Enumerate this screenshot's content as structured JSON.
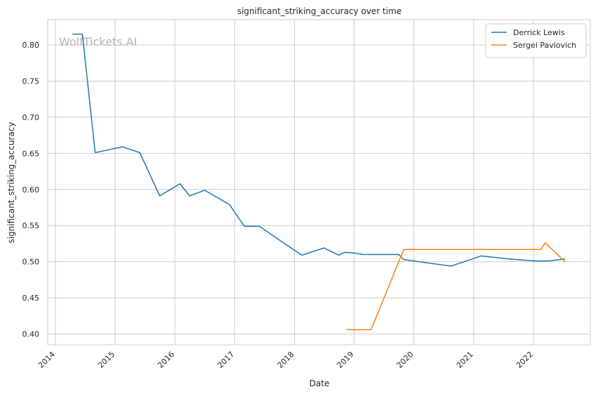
{
  "chart_data": {
    "type": "line",
    "title": "significant_striking_accuracy over time",
    "xlabel": "Date",
    "ylabel": "significant_striking_accuracy",
    "watermark": "WolfTickets.AI",
    "x_range": [
      "2013-11-15",
      "2022-12-15"
    ],
    "ylim": [
      0.385,
      0.835
    ],
    "x_ticks": [
      {
        "value": "2014-01-01",
        "label": "2014"
      },
      {
        "value": "2015-01-01",
        "label": "2015"
      },
      {
        "value": "2016-01-01",
        "label": "2016"
      },
      {
        "value": "2017-01-01",
        "label": "2017"
      },
      {
        "value": "2018-01-01",
        "label": "2018"
      },
      {
        "value": "2019-01-01",
        "label": "2019"
      },
      {
        "value": "2020-01-01",
        "label": "2020"
      },
      {
        "value": "2021-01-01",
        "label": "2021"
      },
      {
        "value": "2022-01-01",
        "label": "2022"
      }
    ],
    "y_ticks": [
      0.4,
      0.45,
      0.5,
      0.55,
      0.6,
      0.65,
      0.7,
      0.75,
      0.8
    ],
    "grid": true,
    "legend_position": "top-right",
    "series": [
      {
        "name": "Derrick Lewis",
        "color": "#1f77b4",
        "points": [
          {
            "x": "2014-04-15",
            "y": 0.815
          },
          {
            "x": "2014-06-15",
            "y": 0.815
          },
          {
            "x": "2014-09-01",
            "y": 0.651
          },
          {
            "x": "2015-02-15",
            "y": 0.659
          },
          {
            "x": "2015-06-01",
            "y": 0.651
          },
          {
            "x": "2015-10-01",
            "y": 0.591
          },
          {
            "x": "2016-02-01",
            "y": 0.608
          },
          {
            "x": "2016-04-01",
            "y": 0.591
          },
          {
            "x": "2016-07-01",
            "y": 0.599
          },
          {
            "x": "2016-12-01",
            "y": 0.579
          },
          {
            "x": "2017-03-01",
            "y": 0.549
          },
          {
            "x": "2017-06-01",
            "y": 0.549
          },
          {
            "x": "2018-02-15",
            "y": 0.509
          },
          {
            "x": "2018-07-01",
            "y": 0.519
          },
          {
            "x": "2018-10-01",
            "y": 0.509
          },
          {
            "x": "2018-11-01",
            "y": 0.513
          },
          {
            "x": "2019-01-01",
            "y": 0.512
          },
          {
            "x": "2019-03-01",
            "y": 0.51
          },
          {
            "x": "2019-10-01",
            "y": 0.51
          },
          {
            "x": "2019-11-01",
            "y": 0.503
          },
          {
            "x": "2020-08-15",
            "y": 0.494
          },
          {
            "x": "2021-02-15",
            "y": 0.508
          },
          {
            "x": "2021-08-01",
            "y": 0.504
          },
          {
            "x": "2022-01-15",
            "y": 0.501
          },
          {
            "x": "2022-04-01",
            "y": 0.501
          },
          {
            "x": "2022-07-15",
            "y": 0.504
          }
        ]
      },
      {
        "name": "Sergei Pavlovich",
        "color": "#ff7f0e",
        "points": [
          {
            "x": "2018-11-15",
            "y": 0.406
          },
          {
            "x": "2019-04-15",
            "y": 0.406
          },
          {
            "x": "2019-11-01",
            "y": 0.517
          },
          {
            "x": "2022-02-15",
            "y": 0.517
          },
          {
            "x": "2022-03-15",
            "y": 0.526
          },
          {
            "x": "2022-07-15",
            "y": 0.5
          }
        ]
      }
    ]
  }
}
